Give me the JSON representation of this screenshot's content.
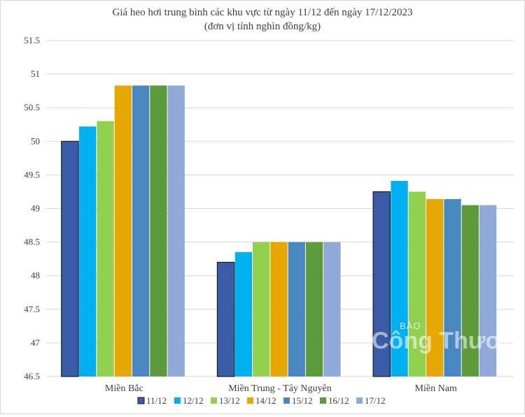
{
  "chart_data": {
    "type": "bar",
    "title": "Giá heo hơi trung bình các khu vực từ ngày 11/12 đến ngày 17/12/2023",
    "subtitle": "(đơn vị tính nghìn đồng/kg)",
    "xlabel": "",
    "ylabel": "",
    "ylim": [
      46.5,
      51.5
    ],
    "yticks": [
      46.5,
      47,
      47.5,
      48,
      48.5,
      49,
      49.5,
      50,
      50.5,
      51,
      51.5
    ],
    "ytick_labels": [
      "46.5",
      "47",
      "47.5",
      "48",
      "48.5",
      "49",
      "49.5",
      "50",
      "50.5",
      "51",
      "51.5"
    ],
    "grid": true,
    "legend_position": "bottom",
    "categories": [
      "Miền Bắc",
      "Miền Trung - Tây Nguyên",
      "Miền Nam"
    ],
    "series": [
      {
        "name": "11/12",
        "color": "#3a5ba6",
        "values": [
          50.0,
          48.2,
          49.25
        ]
      },
      {
        "name": "12/12",
        "color": "#00b0f0",
        "values": [
          50.22,
          48.35,
          49.41
        ]
      },
      {
        "name": "13/12",
        "color": "#92d050",
        "values": [
          50.3,
          48.5,
          49.25
        ]
      },
      {
        "name": "14/12",
        "color": "#e6a800",
        "values": [
          50.83,
          48.5,
          49.14
        ]
      },
      {
        "name": "15/12",
        "color": "#4a87c0",
        "values": [
          50.83,
          48.5,
          49.14
        ]
      },
      {
        "name": "16/12",
        "color": "#5d9a3c",
        "values": [
          50.83,
          48.5,
          49.05
        ]
      },
      {
        "name": "17/12",
        "color": "#8fa9d8",
        "values": [
          50.83,
          48.5,
          49.05
        ]
      }
    ]
  },
  "watermark": {
    "line1": "BÁO",
    "line2": "Công Thương"
  }
}
